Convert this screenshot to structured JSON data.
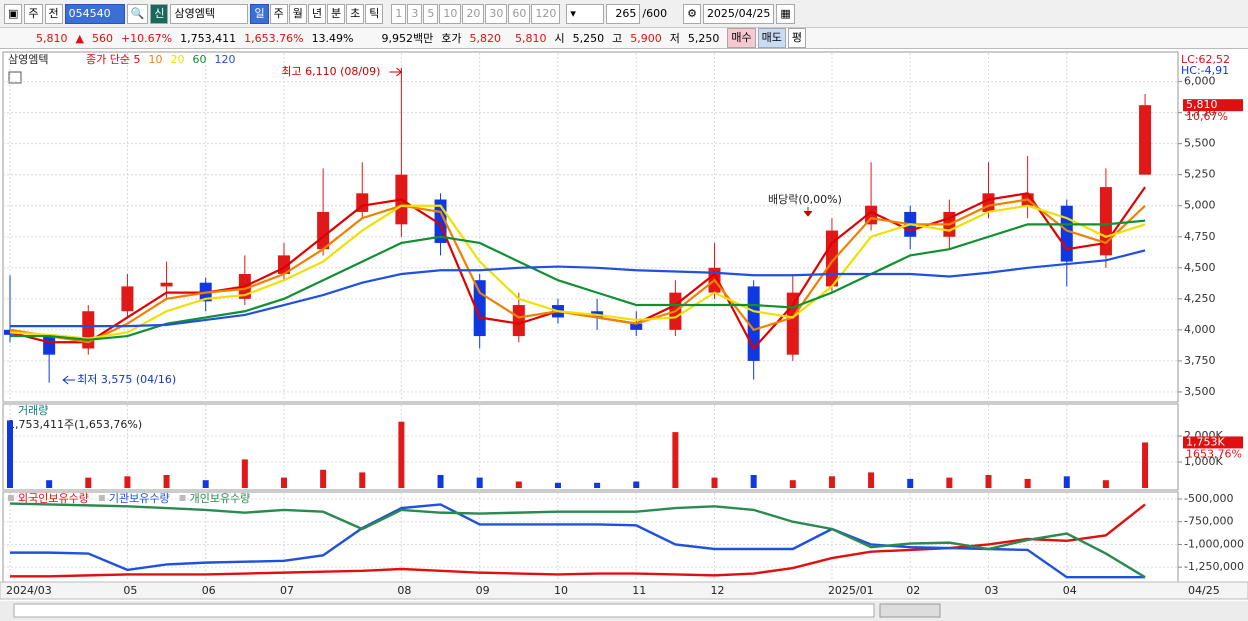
{
  "toolbar": {
    "view_buttons": [
      "주",
      "전"
    ],
    "code": "054540",
    "badge": "신",
    "name": "삼영엠텍",
    "periods": [
      "일",
      "주",
      "월",
      "년",
      "분",
      "초",
      "틱"
    ],
    "minutes": [
      "1",
      "3",
      "5",
      "10",
      "20",
      "30",
      "60",
      "120"
    ],
    "count": "265",
    "max": "/600",
    "date": "2025/04/25"
  },
  "quote": {
    "price": "5,810",
    "arrow": "▲",
    "change": "560",
    "change_pct": "+10.67%",
    "volume": "1,753,411",
    "volume_pct": "1,653.76%",
    "turnover": "13.49%",
    "amount": "9,952백만",
    "ask_label": "호가",
    "ask": "5,820",
    "bid": "5,810",
    "open_label": "시",
    "open": "5,250",
    "high_label": "고",
    "high": "5,900",
    "low_label": "저",
    "low": "5,250",
    "buy": "매수",
    "sell": "매도",
    "avg": "평"
  },
  "chart_data": [
    {
      "type": "candlestick",
      "title": "삼영엠텍",
      "up_color": "#e01818",
      "down_color": "#1038e0",
      "open": [
        4000,
        3950,
        3850,
        4150,
        4350,
        4380,
        4250,
        4450,
        4650,
        4950,
        4850,
        5050,
        4400,
        3950,
        4200,
        4150,
        4050,
        4000,
        4300,
        4350,
        3800,
        4350,
        4850,
        4950,
        4750,
        4950,
        5000,
        5000,
        4600,
        5250
      ],
      "high": [
        4440,
        3960,
        4200,
        4450,
        4550,
        4420,
        4600,
        4700,
        5300,
        5350,
        6110,
        5100,
        4450,
        4300,
        4250,
        4250,
        4150,
        4400,
        4700,
        4400,
        4450,
        4900,
        5350,
        5000,
        5050,
        5350,
        5400,
        5050,
        5300,
        5900
      ],
      "low": [
        3900,
        3575,
        3800,
        4100,
        4250,
        4150,
        4200,
        4400,
        4600,
        4900,
        4750,
        4600,
        3850,
        3900,
        4050,
        4000,
        3950,
        3950,
        4250,
        3600,
        3750,
        4300,
        4800,
        4650,
        4650,
        4900,
        4900,
        4350,
        4500,
        5250
      ],
      "close": [
        3960,
        3800,
        4150,
        4350,
        4380,
        4230,
        4450,
        4600,
        4950,
        5100,
        5250,
        4700,
        3950,
        4200,
        4100,
        4100,
        4000,
        4300,
        4500,
        3750,
        4300,
        4800,
        5000,
        4750,
        4950,
        5100,
        5100,
        4550,
        5150,
        5810
      ],
      "overlays": [
        {
          "name": "종가 단순 5",
          "color": "#e00000",
          "values": [
            3980,
            3900,
            3900,
            4100,
            4300,
            4300,
            4350,
            4500,
            4750,
            5000,
            5050,
            4850,
            4100,
            4050,
            4150,
            4100,
            4050,
            4200,
            4450,
            3850,
            4200,
            4700,
            4950,
            4800,
            4900,
            5050,
            5100,
            4650,
            4700,
            5150
          ]
        },
        {
          "name": "10",
          "color": "#f08000",
          "values": [
            4000,
            3950,
            3900,
            4050,
            4250,
            4300,
            4330,
            4450,
            4650,
            4900,
            5000,
            4950,
            4300,
            4100,
            4150,
            4100,
            4050,
            4150,
            4400,
            4000,
            4100,
            4550,
            4900,
            4850,
            4850,
            5000,
            5050,
            4800,
            4700,
            5000
          ]
        },
        {
          "name": "20",
          "color": "#f0e000",
          "values": [
            3980,
            3960,
            3930,
            3980,
            4150,
            4250,
            4280,
            4400,
            4550,
            4800,
            5000,
            5000,
            4550,
            4250,
            4150,
            4120,
            4080,
            4100,
            4300,
            4150,
            4100,
            4350,
            4750,
            4850,
            4800,
            4950,
            5000,
            4900,
            4750,
            4850
          ]
        },
        {
          "name": "60",
          "color": "#109030",
          "values": [
            3950,
            3950,
            3920,
            3950,
            4050,
            4100,
            4150,
            4250,
            4400,
            4550,
            4700,
            4750,
            4700,
            4550,
            4400,
            4300,
            4200,
            4200,
            4200,
            4200,
            4180,
            4300,
            4450,
            4600,
            4650,
            4750,
            4850,
            4850,
            4850,
            4880
          ]
        },
        {
          "name": "120",
          "color": "#2050e0",
          "values": [
            4030,
            4030,
            4030,
            4030,
            4040,
            4080,
            4120,
            4200,
            4280,
            4380,
            4450,
            4480,
            4480,
            4500,
            4510,
            4500,
            4480,
            4470,
            4460,
            4440,
            4440,
            4450,
            4450,
            4450,
            4430,
            4460,
            4500,
            4530,
            4560,
            4640
          ]
        }
      ],
      "ylim": [
        3435,
        6190
      ],
      "yticks": [
        {
          "value": 3500,
          "label": "3,500"
        },
        {
          "value": 3750,
          "label": "3,750"
        },
        {
          "value": 4000,
          "label": "4,000"
        },
        {
          "value": 4250,
          "label": "4,250"
        },
        {
          "value": 4500,
          "label": "4,500"
        },
        {
          "value": 4750,
          "label": "4,750"
        },
        {
          "value": 5000,
          "label": "5,000"
        },
        {
          "value": 5250,
          "label": "5,250"
        },
        {
          "value": 5500,
          "label": "5,500"
        },
        {
          "value": 5750,
          "label": "5,750"
        },
        {
          "value": 6000,
          "label": "6,000"
        }
      ],
      "grid": true,
      "annotations": {
        "high": "최고 6,110 (08/09)",
        "low": "최저 3,575 (04/16)",
        "dividend": "배당락(0,00%)",
        "lc": "LC:62,52",
        "hc": "HC:-4,91",
        "current": "5,810",
        "current_pct": "10,67%"
      }
    },
    {
      "type": "bar",
      "title": "거래량",
      "subtitle": "1,753,411주(1,653,76%)",
      "values": [
        2600,
        300,
        400,
        450,
        500,
        300,
        1100,
        400,
        700,
        600,
        2550,
        500,
        400,
        250,
        200,
        200,
        250,
        2150,
        400,
        500,
        300,
        450,
        600,
        350,
        400,
        500,
        350,
        450,
        300,
        1753
      ],
      "ylim": [
        0,
        2770
      ],
      "yticks": [
        {
          "value": 1000,
          "label": "1,000K"
        },
        {
          "value": 2000,
          "label": "2,000K"
        }
      ],
      "grid": true,
      "annotations": {
        "current": "1,753K",
        "current_pct": "1653,76%"
      }
    },
    {
      "type": "line",
      "categories": [
        "2024/03",
        null,
        null,
        "05",
        null,
        "06",
        null,
        "07",
        null,
        null,
        "08",
        null,
        "09",
        null,
        "10",
        null,
        "11",
        null,
        "12",
        null,
        null,
        "2025/01",
        null,
        "02",
        null,
        "03",
        null,
        "04",
        null,
        null
      ],
      "last_date": "04/25",
      "series": [
        {
          "name": "외국인보유수량",
          "color": "#e01010",
          "values": [
            -1350000,
            -1350000,
            -1340000,
            -1330000,
            -1330000,
            -1330000,
            -1320000,
            -1310000,
            -1300000,
            -1290000,
            -1270000,
            -1290000,
            -1310000,
            -1320000,
            -1330000,
            -1320000,
            -1320000,
            -1330000,
            -1340000,
            -1320000,
            -1260000,
            -1150000,
            -1080000,
            -1060000,
            -1040000,
            -1000000,
            -940000,
            -960000,
            -900000,
            -560000
          ]
        },
        {
          "name": "기관보유수량",
          "color": "#2050e0",
          "values": [
            -1090000,
            -1090000,
            -1100000,
            -1280000,
            -1220000,
            -1200000,
            -1190000,
            -1180000,
            -1120000,
            -820000,
            -600000,
            -560000,
            -780000,
            -780000,
            -780000,
            -780000,
            -790000,
            -1000000,
            -1050000,
            -1050000,
            -1050000,
            -830000,
            -1000000,
            -1030000,
            -1040000,
            -1050000,
            -1060000,
            -1360000,
            -1360000,
            -1360000
          ]
        },
        {
          "name": "개인보유수량",
          "color": "#2a8a50",
          "values": [
            -550000,
            -560000,
            -570000,
            -580000,
            -600000,
            -620000,
            -650000,
            -620000,
            -640000,
            -830000,
            -620000,
            -650000,
            -660000,
            -650000,
            -640000,
            -640000,
            -640000,
            -600000,
            -580000,
            -620000,
            -750000,
            -830000,
            -1030000,
            -990000,
            -980000,
            -1050000,
            -950000,
            -880000,
            -1100000,
            -1360000
          ]
        }
      ],
      "ylim": [
        -1391000,
        -467000
      ],
      "yticks": [
        {
          "value": -1250000,
          "label": "-1,250,000"
        },
        {
          "value": -1000000,
          "label": "-1,000,000"
        },
        {
          "value": -750000,
          "label": "-750,000"
        },
        {
          "value": -500000,
          "label": "-500,000"
        }
      ],
      "grid": true
    }
  ]
}
